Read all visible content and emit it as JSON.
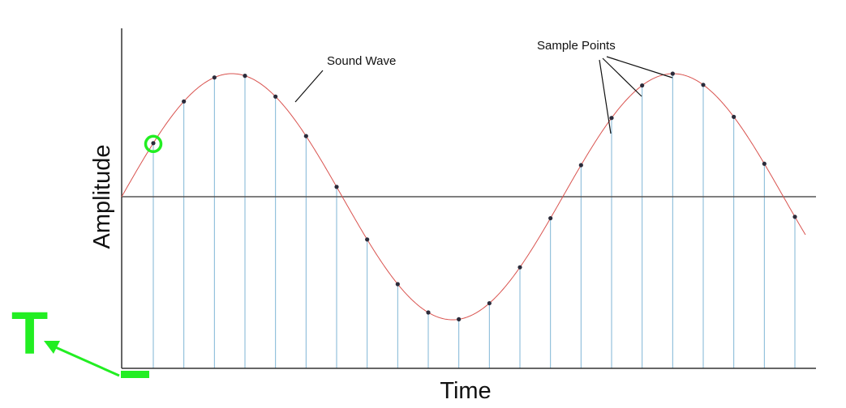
{
  "labels": {
    "y_axis": "Amplitude",
    "x_axis": "Time",
    "wave": "Sound Wave",
    "samples": "Sample Points",
    "period_symbol": "T"
  },
  "colors": {
    "wave": "#d9534f",
    "stem": "#7fb6d6",
    "axis": "#333333",
    "zero_line": "#555555",
    "sample_dot": "#2b2b3a",
    "highlight": "#22ee22"
  },
  "wave": {
    "cycles": 1.55,
    "sample_count": 22,
    "highlighted_sample_index": 0
  }
}
